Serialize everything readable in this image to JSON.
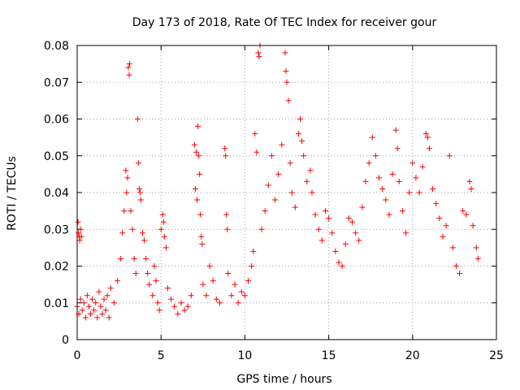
{
  "chart_data": {
    "type": "scatter",
    "title": "Day 173 of 2018, Rate Of TEC Index for receiver gour",
    "xlabel": "GPS time / hours",
    "ylabel": "ROTI / TECUs",
    "xlim": [
      0,
      25
    ],
    "ylim": [
      0,
      0.08
    ],
    "xticks": [
      "0",
      "5",
      "10",
      "15",
      "20",
      "25"
    ],
    "yticks": [
      "0",
      "0.01",
      "0.02",
      "0.03",
      "0.04",
      "0.05",
      "0.06",
      "0.07",
      "0.08"
    ],
    "grid": true,
    "marker": "+",
    "color": "#ff0000",
    "series": [
      {
        "values": [
          [
            0.05,
            0.032
          ],
          [
            0.08,
            0.029
          ],
          [
            0.12,
            0.028
          ],
          [
            0.15,
            0.027
          ],
          [
            0.2,
            0.03
          ],
          [
            0.25,
            0.028
          ],
          [
            0.0,
            0.009
          ],
          [
            0.1,
            0.007
          ],
          [
            0.2,
            0.011
          ],
          [
            0.3,
            0.008
          ],
          [
            0.4,
            0.01
          ],
          [
            0.5,
            0.006
          ],
          [
            0.6,
            0.012
          ],
          [
            0.7,
            0.009
          ],
          [
            0.8,
            0.007
          ],
          [
            0.9,
            0.011
          ],
          [
            1.0,
            0.008
          ],
          [
            1.1,
            0.01
          ],
          [
            1.2,
            0.006
          ],
          [
            1.3,
            0.013
          ],
          [
            1.4,
            0.009
          ],
          [
            1.5,
            0.007
          ],
          [
            1.6,
            0.011
          ],
          [
            1.7,
            0.008
          ],
          [
            1.8,
            0.012
          ],
          [
            1.9,
            0.006
          ],
          [
            2.0,
            0.014
          ],
          [
            2.2,
            0.01
          ],
          [
            2.4,
            0.016
          ],
          [
            2.6,
            0.022
          ],
          [
            2.7,
            0.029
          ],
          [
            2.8,
            0.035
          ],
          [
            2.9,
            0.046
          ],
          [
            3.0,
            0.044
          ],
          [
            2.95,
            0.04
          ],
          [
            3.05,
            0.074
          ],
          [
            3.1,
            0.072
          ],
          [
            3.12,
            0.075
          ],
          [
            3.2,
            0.035
          ],
          [
            3.3,
            0.03
          ],
          [
            3.4,
            0.022
          ],
          [
            3.5,
            0.018
          ],
          [
            3.6,
            0.06
          ],
          [
            3.65,
            0.048
          ],
          [
            3.7,
            0.041
          ],
          [
            3.75,
            0.04
          ],
          [
            3.8,
            0.038
          ],
          [
            3.9,
            0.029
          ],
          [
            4.0,
            0.027
          ],
          [
            4.1,
            0.022
          ],
          [
            4.2,
            0.018
          ],
          [
            4.3,
            0.015
          ],
          [
            4.5,
            0.012
          ],
          [
            4.6,
            0.02
          ],
          [
            4.7,
            0.016
          ],
          [
            4.8,
            0.01
          ],
          [
            4.9,
            0.008
          ],
          [
            5.0,
            0.03
          ],
          [
            5.1,
            0.034
          ],
          [
            5.15,
            0.032
          ],
          [
            5.2,
            0.028
          ],
          [
            5.3,
            0.025
          ],
          [
            5.4,
            0.014
          ],
          [
            5.6,
            0.011
          ],
          [
            5.8,
            0.009
          ],
          [
            6.0,
            0.007
          ],
          [
            6.2,
            0.01
          ],
          [
            6.4,
            0.008
          ],
          [
            6.6,
            0.009
          ],
          [
            6.8,
            0.012
          ],
          [
            7.0,
            0.053
          ],
          [
            7.1,
            0.051
          ],
          [
            7.2,
            0.058
          ],
          [
            7.25,
            0.05
          ],
          [
            7.3,
            0.045
          ],
          [
            7.05,
            0.041
          ],
          [
            7.15,
            0.038
          ],
          [
            7.35,
            0.034
          ],
          [
            7.4,
            0.028
          ],
          [
            7.45,
            0.026
          ],
          [
            7.5,
            0.015
          ],
          [
            7.7,
            0.012
          ],
          [
            7.9,
            0.02
          ],
          [
            8.1,
            0.016
          ],
          [
            8.3,
            0.011
          ],
          [
            8.5,
            0.01
          ],
          [
            8.8,
            0.052
          ],
          [
            8.85,
            0.05
          ],
          [
            8.9,
            0.034
          ],
          [
            8.95,
            0.03
          ],
          [
            9.0,
            0.018
          ],
          [
            9.2,
            0.012
          ],
          [
            9.4,
            0.015
          ],
          [
            9.6,
            0.01
          ],
          [
            9.8,
            0.013
          ],
          [
            10.0,
            0.012
          ],
          [
            10.2,
            0.016
          ],
          [
            10.4,
            0.02
          ],
          [
            10.5,
            0.024
          ],
          [
            10.6,
            0.056
          ],
          [
            10.7,
            0.051
          ],
          [
            10.8,
            0.078
          ],
          [
            10.85,
            0.077
          ],
          [
            10.9,
            0.08
          ],
          [
            11.0,
            0.03
          ],
          [
            11.2,
            0.035
          ],
          [
            11.4,
            0.042
          ],
          [
            11.6,
            0.05
          ],
          [
            11.8,
            0.038
          ],
          [
            12.0,
            0.045
          ],
          [
            12.2,
            0.053
          ],
          [
            12.4,
            0.078
          ],
          [
            12.45,
            0.073
          ],
          [
            12.5,
            0.07
          ],
          [
            12.6,
            0.065
          ],
          [
            12.7,
            0.048
          ],
          [
            12.8,
            0.04
          ],
          [
            13.0,
            0.036
          ],
          [
            13.2,
            0.056
          ],
          [
            13.3,
            0.06
          ],
          [
            13.4,
            0.054
          ],
          [
            13.5,
            0.05
          ],
          [
            13.7,
            0.043
          ],
          [
            13.9,
            0.046
          ],
          [
            14.0,
            0.04
          ],
          [
            14.2,
            0.034
          ],
          [
            14.4,
            0.03
          ],
          [
            14.6,
            0.027
          ],
          [
            14.8,
            0.035
          ],
          [
            15.0,
            0.033
          ],
          [
            15.2,
            0.029
          ],
          [
            15.4,
            0.024
          ],
          [
            15.6,
            0.021
          ],
          [
            15.8,
            0.02
          ],
          [
            16.0,
            0.026
          ],
          [
            16.2,
            0.033
          ],
          [
            16.4,
            0.032
          ],
          [
            16.6,
            0.029
          ],
          [
            16.8,
            0.027
          ],
          [
            17.0,
            0.036
          ],
          [
            17.2,
            0.043
          ],
          [
            17.4,
            0.048
          ],
          [
            17.6,
            0.055
          ],
          [
            17.8,
            0.05
          ],
          [
            18.0,
            0.044
          ],
          [
            18.2,
            0.041
          ],
          [
            18.4,
            0.038
          ],
          [
            18.6,
            0.034
          ],
          [
            18.8,
            0.045
          ],
          [
            19.0,
            0.057
          ],
          [
            19.1,
            0.052
          ],
          [
            19.2,
            0.043
          ],
          [
            19.4,
            0.035
          ],
          [
            19.6,
            0.029
          ],
          [
            19.8,
            0.04
          ],
          [
            20.0,
            0.048
          ],
          [
            20.2,
            0.044
          ],
          [
            20.4,
            0.04
          ],
          [
            20.6,
            0.047
          ],
          [
            20.8,
            0.056
          ],
          [
            20.9,
            0.055
          ],
          [
            21.0,
            0.052
          ],
          [
            21.2,
            0.041
          ],
          [
            21.4,
            0.037
          ],
          [
            21.6,
            0.033
          ],
          [
            21.8,
            0.028
          ],
          [
            22.0,
            0.031
          ],
          [
            22.2,
            0.05
          ],
          [
            22.4,
            0.025
          ],
          [
            22.6,
            0.02
          ],
          [
            22.8,
            0.018
          ],
          [
            23.0,
            0.035
          ],
          [
            23.2,
            0.034
          ],
          [
            23.4,
            0.043
          ],
          [
            23.5,
            0.041
          ],
          [
            23.6,
            0.031
          ],
          [
            23.8,
            0.025
          ],
          [
            23.9,
            0.022
          ]
        ]
      }
    ]
  }
}
